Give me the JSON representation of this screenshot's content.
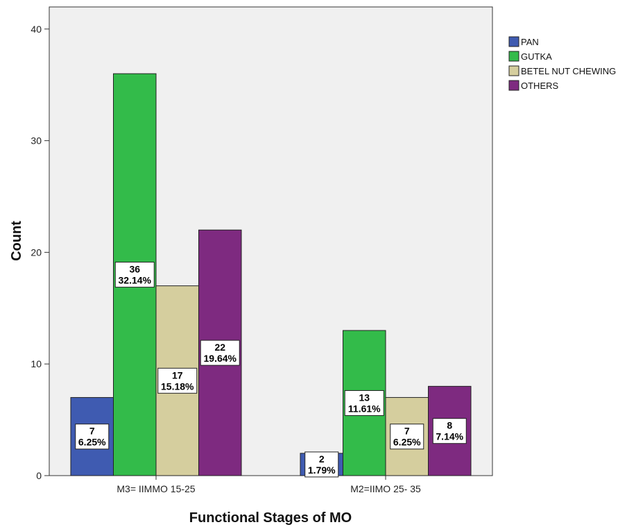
{
  "chart_data": {
    "type": "bar",
    "xlabel": "Functional Stages of MO",
    "ylabel": "Count",
    "ylim": [
      0,
      40
    ],
    "yticks": [
      "0",
      "10",
      "20",
      "30",
      "40"
    ],
    "categories": [
      "M3= IIMMO 15-25",
      "M2=IIMO 25- 35"
    ],
    "series": [
      {
        "name": "PAN",
        "color": "#3f5bb1",
        "values": [
          7,
          2
        ],
        "labels": [
          [
            "7",
            "6.25%"
          ],
          [
            "2",
            "1.79%"
          ]
        ]
      },
      {
        "name": "GUTKA",
        "color": "#33bb4a",
        "values": [
          36,
          13
        ],
        "labels": [
          [
            "36",
            "32.14%"
          ],
          [
            "13",
            "11.61%"
          ]
        ]
      },
      {
        "name": "BETEL NUT CHEWING",
        "color": "#d5ce9e",
        "values": [
          17,
          7
        ],
        "labels": [
          [
            "17",
            "15.18%"
          ],
          [
            "7",
            "6.25%"
          ]
        ]
      },
      {
        "name": "OTHERS",
        "color": "#7e2a80",
        "values": [
          22,
          8
        ],
        "labels": [
          [
            "22",
            "19.64%"
          ],
          [
            "8",
            "7.14%"
          ]
        ]
      }
    ],
    "legend_position": "top-right",
    "plot_background": "#f0f0f0",
    "grid": false
  }
}
